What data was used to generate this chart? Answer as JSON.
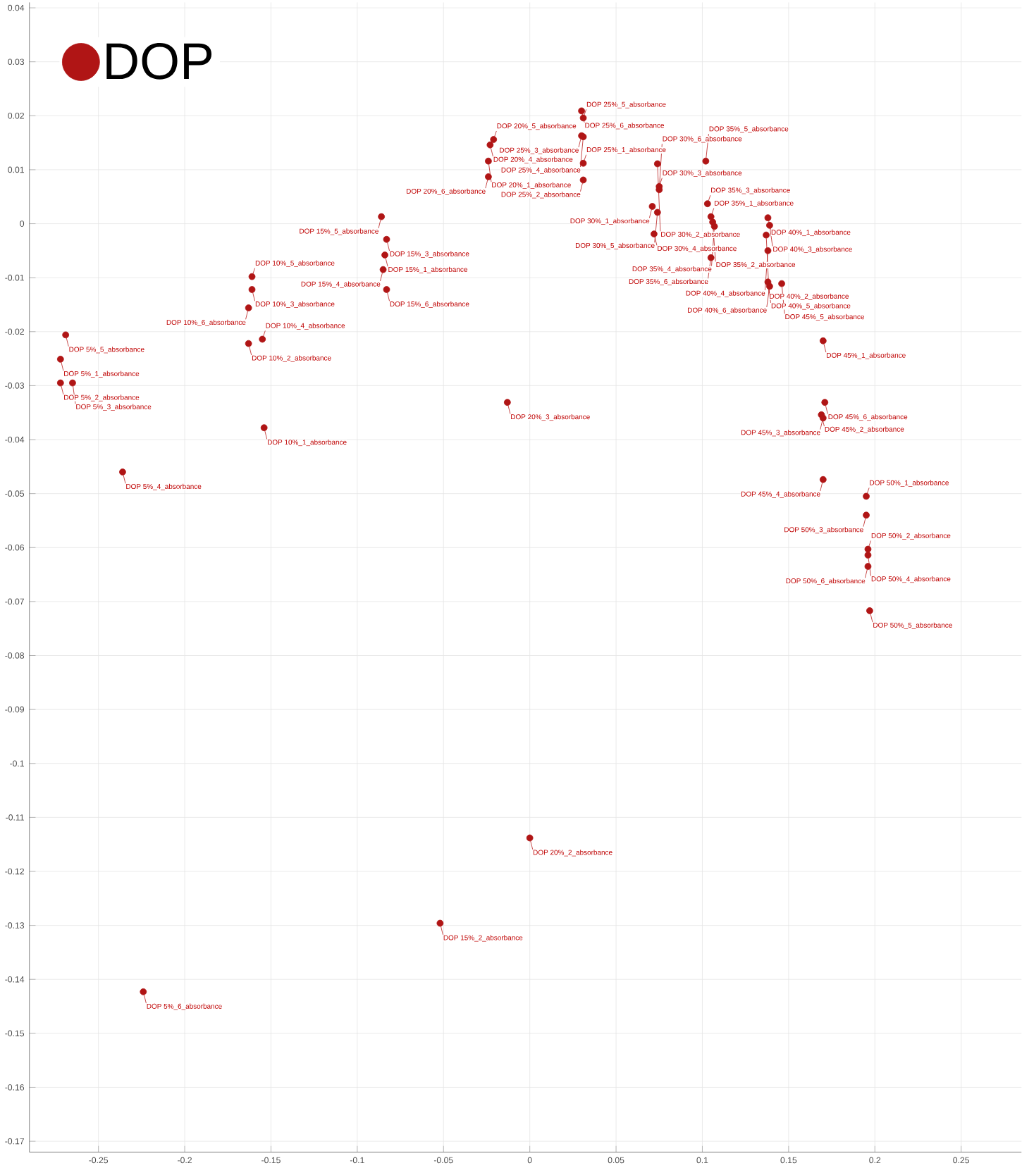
{
  "chart_data": {
    "type": "scatter",
    "series": [
      {
        "name": "DOP",
        "color": "#b01515",
        "x": [
          -0.272,
          -0.272,
          -0.265,
          -0.269,
          -0.236,
          -0.224,
          -0.154,
          -0.163,
          -0.161,
          -0.155,
          -0.161,
          -0.163,
          -0.084,
          -0.052,
          -0.083,
          -0.085,
          -0.086,
          -0.083,
          -0.024,
          0.0,
          -0.013,
          -0.023,
          -0.021,
          -0.024,
          0.031,
          0.031,
          0.03,
          0.031,
          0.031,
          0.03,
          0.071,
          0.074,
          0.075,
          0.072,
          0.074,
          0.075,
          0.105,
          0.106,
          0.103,
          0.107,
          0.102,
          0.105,
          0.138,
          0.137,
          0.139,
          0.138,
          0.138,
          0.139,
          0.17,
          0.169,
          0.17,
          0.17,
          0.146,
          0.171,
          0.195,
          0.196,
          0.195,
          0.196,
          0.197,
          0.196
        ],
        "values": [
          -0.0251,
          -0.0295,
          -0.0295,
          -0.0206,
          -0.046,
          -0.1423,
          -0.0378,
          -0.0222,
          -0.0122,
          -0.0214,
          -0.0098,
          -0.0156,
          -0.0058,
          -0.1296,
          -0.0029,
          -0.0085,
          0.0013,
          -0.0122,
          0.0116,
          -0.1138,
          -0.0331,
          0.0146,
          0.0156,
          0.0087,
          0.0112,
          0.0081,
          0.0163,
          0.0161,
          0.0196,
          0.0209,
          0.0032,
          0.0111,
          0.0069,
          -0.0019,
          0.0021,
          0.0063,
          0.0013,
          0.0003,
          0.0037,
          -0.0005,
          0.0116,
          -0.0063,
          0.0011,
          -0.0021,
          -0.0003,
          -0.005,
          -0.0108,
          -0.0116,
          -0.0217,
          -0.0354,
          -0.036,
          -0.0474,
          -0.0111,
          -0.0331,
          -0.0505,
          -0.0603,
          -0.054,
          -0.0614,
          -0.0717,
          -0.0635
        ]
      }
    ],
    "marker": "circle",
    "grid": true,
    "legend": "top left",
    "xlim": [
      -0.29,
      0.285
    ],
    "ylim": [
      -0.172,
      0.041
    ],
    "xticks": [
      -0.25,
      -0.2,
      -0.15,
      -0.1,
      -0.05,
      0,
      0.05,
      0.1,
      0.15,
      0.2,
      0.25
    ],
    "yticks": [
      0.04,
      0.03,
      0.02,
      0.01,
      0,
      -0.01,
      -0.02,
      -0.03,
      -0.04,
      -0.05,
      -0.06,
      -0.07,
      -0.08,
      -0.09,
      -0.1,
      -0.11,
      -0.12,
      -0.13,
      -0.14,
      -0.15,
      -0.16,
      -0.17
    ],
    "annotations": [
      {
        "text": "DOP 5%_1_absorbance",
        "x": -0.272,
        "y": -0.0251
      },
      {
        "text": "DOP 5%_2_absorbance",
        "x": -0.272,
        "y": -0.0295
      },
      {
        "text": "DOP 5%_3_absorbance",
        "x": -0.265,
        "y": -0.0295
      },
      {
        "text": "DOP 5%_5_absorbance",
        "x": -0.269,
        "y": -0.0206
      },
      {
        "text": "DOP 5%_4_absorbance",
        "x": -0.236,
        "y": -0.046
      },
      {
        "text": "DOP 5%_6_absorbance",
        "x": -0.224,
        "y": -0.1423
      },
      {
        "text": "DOP 10%_1_absorbance",
        "x": -0.154,
        "y": -0.0378
      },
      {
        "text": "DOP 10%_2_absorbance",
        "x": -0.163,
        "y": -0.0222
      },
      {
        "text": "DOP 10%_3_absorbance",
        "x": -0.161,
        "y": -0.0122
      },
      {
        "text": "DOP 10%_4_absorbance",
        "x": -0.155,
        "y": -0.0214
      },
      {
        "text": "DOP 10%_5_absorbance",
        "x": -0.161,
        "y": -0.0098
      },
      {
        "text": "DOP 10%_6_absorbance",
        "x": -0.163,
        "y": -0.0156
      },
      {
        "text": "DOP 15%_1_absorbance",
        "x": -0.084,
        "y": -0.0058
      },
      {
        "text": "DOP 15%_2_absorbance",
        "x": -0.052,
        "y": -0.1296
      },
      {
        "text": "DOP 15%_3_absorbance",
        "x": -0.083,
        "y": -0.0029
      },
      {
        "text": "DOP 15%_4_absorbance",
        "x": -0.085,
        "y": -0.0085
      },
      {
        "text": "DOP 15%_5_absorbance",
        "x": -0.086,
        "y": 0.0013
      },
      {
        "text": "DOP 15%_6_absorbance",
        "x": -0.083,
        "y": -0.0122
      },
      {
        "text": "DOP 20%_1_absorbance",
        "x": -0.024,
        "y": 0.0116
      },
      {
        "text": "DOP 20%_2_absorbance",
        "x": 0.0,
        "y": -0.1138
      },
      {
        "text": "DOP 20%_3_absorbance",
        "x": -0.013,
        "y": -0.0331
      },
      {
        "text": "DOP 20%_4_absorbance",
        "x": -0.023,
        "y": 0.0146
      },
      {
        "text": "DOP 20%_5_absorbance",
        "x": -0.021,
        "y": 0.0156
      },
      {
        "text": "DOP 20%_6_absorbance",
        "x": -0.024,
        "y": 0.0087
      },
      {
        "text": "DOP 25%_1_absorbance",
        "x": 0.031,
        "y": 0.0112
      },
      {
        "text": "DOP 25%_2_absorbance",
        "x": 0.031,
        "y": 0.0081
      },
      {
        "text": "DOP 25%_3_absorbance",
        "x": 0.03,
        "y": 0.0163
      },
      {
        "text": "DOP 25%_4_absorbance",
        "x": 0.031,
        "y": 0.0161
      },
      {
        "text": "DOP 25%_5_absorbance",
        "x": 0.031,
        "y": 0.0196
      },
      {
        "text": "DOP 25%_6_absorbance",
        "x": 0.03,
        "y": 0.0209
      },
      {
        "text": "DOP 30%_1_absorbance",
        "x": 0.071,
        "y": 0.0032
      },
      {
        "text": "DOP 30%_2_absorbance",
        "x": 0.074,
        "y": 0.0111
      },
      {
        "text": "DOP 30%_3_absorbance",
        "x": 0.075,
        "y": 0.0069
      },
      {
        "text": "DOP 30%_4_absorbance",
        "x": 0.072,
        "y": -0.0019
      },
      {
        "text": "DOP 30%_5_absorbance",
        "x": 0.074,
        "y": 0.0021
      },
      {
        "text": "DOP 30%_6_absorbance",
        "x": 0.075,
        "y": 0.0063
      },
      {
        "text": "DOP 35%_1_absorbance",
        "x": 0.105,
        "y": 0.0013
      },
      {
        "text": "DOP 35%_2_absorbance",
        "x": 0.106,
        "y": 0.0003
      },
      {
        "text": "DOP 35%_3_absorbance",
        "x": 0.103,
        "y": 0.0037
      },
      {
        "text": "DOP 35%_4_absorbance",
        "x": 0.107,
        "y": -0.0005
      },
      {
        "text": "DOP 35%_5_absorbance",
        "x": 0.102,
        "y": 0.0116
      },
      {
        "text": "DOP 35%_6_absorbance",
        "x": 0.105,
        "y": -0.0063
      },
      {
        "text": "DOP 40%_1_absorbance",
        "x": 0.138,
        "y": 0.0011
      },
      {
        "text": "DOP 40%_2_absorbance",
        "x": 0.137,
        "y": -0.0021
      },
      {
        "text": "DOP 40%_3_absorbance",
        "x": 0.139,
        "y": -0.0003
      },
      {
        "text": "DOP 40%_4_absorbance",
        "x": 0.138,
        "y": -0.005
      },
      {
        "text": "DOP 40%_5_absorbance",
        "x": 0.138,
        "y": -0.0108
      },
      {
        "text": "DOP 40%_6_absorbance",
        "x": 0.139,
        "y": -0.0116
      },
      {
        "text": "DOP 45%_1_absorbance",
        "x": 0.17,
        "y": -0.0217
      },
      {
        "text": "DOP 45%_2_absorbance",
        "x": 0.169,
        "y": -0.0354
      },
      {
        "text": "DOP 45%_3_absorbance",
        "x": 0.17,
        "y": -0.036
      },
      {
        "text": "DOP 45%_4_absorbance",
        "x": 0.17,
        "y": -0.0474
      },
      {
        "text": "DOP 45%_5_absorbance",
        "x": 0.146,
        "y": -0.0111
      },
      {
        "text": "DOP 45%_6_absorbance",
        "x": 0.171,
        "y": -0.0331
      },
      {
        "text": "DOP 50%_1_absorbance",
        "x": 0.195,
        "y": -0.0505
      },
      {
        "text": "DOP 50%_2_absorbance",
        "x": 0.196,
        "y": -0.0603
      },
      {
        "text": "DOP 50%_3_absorbance",
        "x": 0.195,
        "y": -0.054
      },
      {
        "text": "DOP 50%_4_absorbance",
        "x": 0.196,
        "y": -0.0614
      },
      {
        "text": "DOP 50%_5_absorbance",
        "x": 0.197,
        "y": -0.0717
      },
      {
        "text": "DOP 50%_6_absorbance",
        "x": 0.196,
        "y": -0.0635
      }
    ]
  }
}
